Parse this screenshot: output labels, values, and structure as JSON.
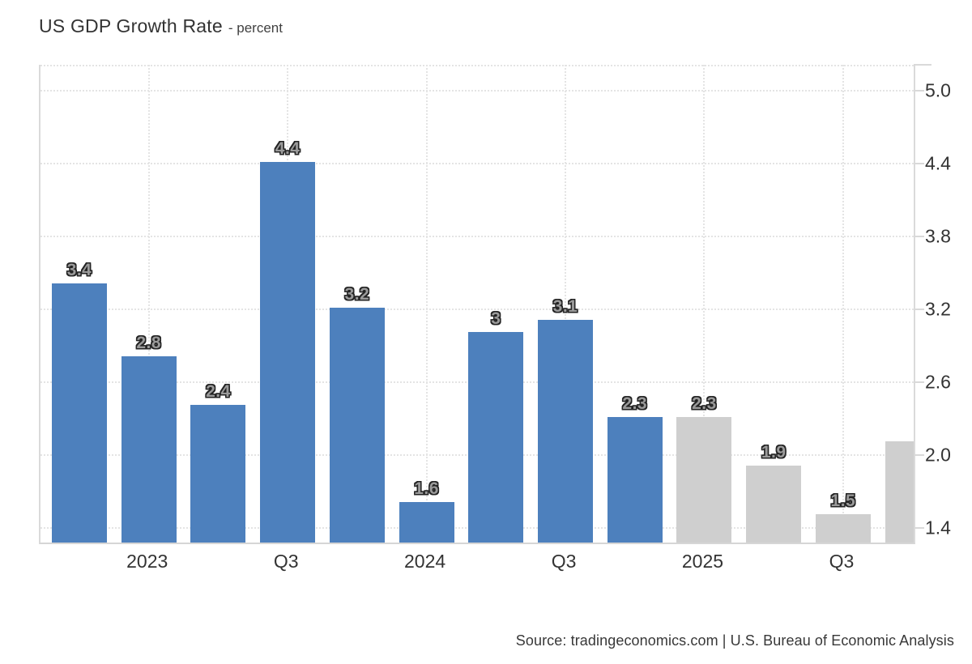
{
  "page": {
    "title": "US GDP Growth Rate",
    "title_suffix": "- percent",
    "source": "Source: tradingeconomics.com | U.S. Bureau of Economic Analysis"
  },
  "chart_data": {
    "type": "bar",
    "title": "US GDP Growth Rate",
    "ylabel": "percent",
    "xlabel": "",
    "categories": [
      "",
      "2023",
      "",
      "Q3",
      "",
      "2024",
      "",
      "Q3",
      "",
      "2025",
      "",
      "Q3",
      ""
    ],
    "values": [
      3.4,
      2.8,
      2.4,
      4.4,
      3.2,
      1.6,
      3,
      3.1,
      2.3,
      2.3,
      1.9,
      1.5,
      2.1
    ],
    "bar_labels": [
      "3.4",
      "2.8",
      "2.4",
      "4.4",
      "3.2",
      "1.6",
      "3",
      "3.1",
      "2.3",
      "2.3",
      "1.9",
      "1.5",
      ""
    ],
    "bar_series": [
      "actual",
      "actual",
      "actual",
      "actual",
      "actual",
      "actual",
      "actual",
      "actual",
      "actual",
      "forecast",
      "forecast",
      "forecast",
      "forecast"
    ],
    "series_colors": {
      "actual": "#4d80bd",
      "forecast": "#cfcfcf"
    },
    "ytick_labels": [
      "5.0",
      "4.4",
      "3.8",
      "3.2",
      "2.6",
      "2.0",
      "1.4"
    ],
    "yticks": [
      5.0,
      4.4,
      3.8,
      3.2,
      2.6,
      2.0,
      1.4
    ],
    "ylim": [
      1.27,
      5.21
    ],
    "grid": "dotted",
    "legend": "none",
    "note": "last bar unlabeled, value estimated from gridlines"
  }
}
